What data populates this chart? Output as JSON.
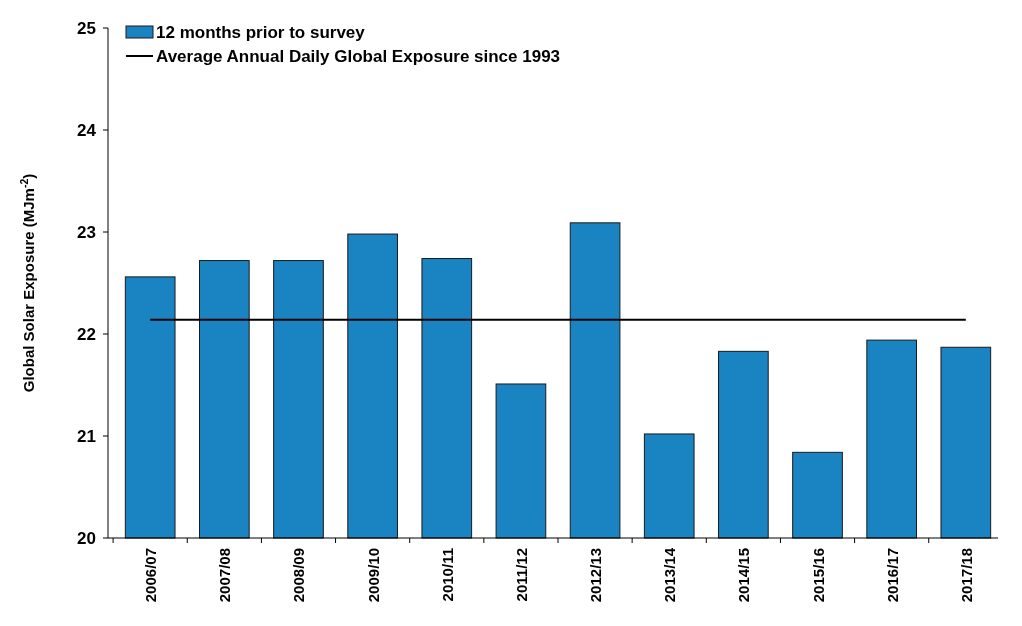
{
  "chart_data": {
    "type": "bar",
    "ylabel": "Global Solar Exposure (MJm$^{-2}$)",
    "categories": [
      "2006/07",
      "2007/08",
      "2008/09",
      "2009/10",
      "2010/11",
      "2011/12",
      "2012/13",
      "2013/14",
      "2014/15",
      "2015/16",
      "2016/17",
      "2017/18"
    ],
    "series": [
      {
        "name": "12 months prior to survey",
        "color": "#1a83c2",
        "values": [
          22.56,
          22.72,
          22.72,
          22.98,
          22.74,
          21.51,
          23.09,
          21.02,
          21.83,
          20.84,
          21.94,
          21.87
        ]
      },
      {
        "name": "Average Annual Daily Global Exposure since 1993",
        "type": "line",
        "color": "#000000",
        "values": [
          22.14,
          22.14,
          22.14,
          22.14,
          22.14,
          22.14,
          22.14,
          22.14,
          22.14,
          22.14,
          22.14,
          22.14
        ]
      }
    ],
    "ylim": [
      20,
      25
    ],
    "yticks": [
      20,
      21,
      22,
      23,
      24,
      25
    ],
    "legend": "top left",
    "grid": false,
    "marker": "none"
  }
}
